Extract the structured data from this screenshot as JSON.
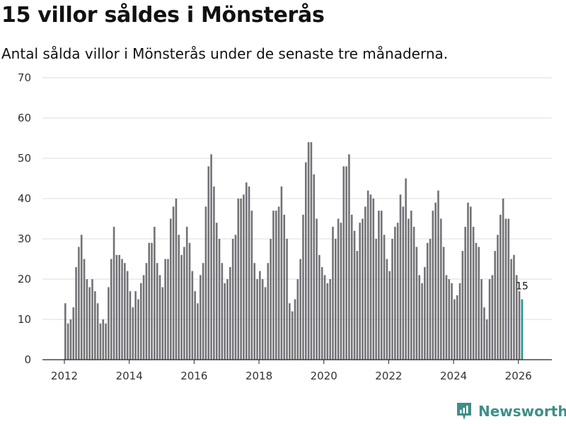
{
  "title": "15 villor såldes i Mönsterås",
  "subtitle": "Antal sålda villor i Mönsterås under de senaste tre månaderna.",
  "brand": {
    "name": "Newsworthy",
    "icon": "newsworthy-logo-icon"
  },
  "colors": {
    "bar": "#737277",
    "highlight": "#22958d",
    "grid": "#dddddd"
  },
  "chart_data": {
    "type": "bar",
    "title": "15 villor såldes i Mönsterås",
    "xlabel": "",
    "ylabel": "",
    "ylim": [
      0,
      70
    ],
    "yticks": [
      0,
      10,
      20,
      30,
      40,
      50,
      60,
      70
    ],
    "xticks": [
      2012,
      2014,
      2016,
      2018,
      2020,
      2022,
      2024,
      2026
    ],
    "start_year": 2012,
    "start_month": 1,
    "frequency": "monthly",
    "values": [
      14,
      9,
      10,
      13,
      23,
      28,
      31,
      25,
      20,
      18,
      20,
      17,
      14,
      9,
      10,
      9,
      18,
      25,
      33,
      26,
      26,
      25,
      24,
      22,
      17,
      13,
      17,
      15,
      19,
      21,
      24,
      29,
      29,
      33,
      24,
      21,
      18,
      25,
      25,
      35,
      38,
      40,
      31,
      26,
      28,
      33,
      29,
      22,
      17,
      14,
      21,
      24,
      38,
      48,
      51,
      43,
      34,
      30,
      24,
      19,
      20,
      23,
      30,
      31,
      40,
      40,
      41,
      44,
      43,
      37,
      24,
      20,
      22,
      20,
      18,
      24,
      30,
      37,
      37,
      38,
      43,
      36,
      30,
      14,
      12,
      15,
      20,
      25,
      36,
      49,
      54,
      54,
      46,
      35,
      26,
      23,
      21,
      19,
      20,
      33,
      30,
      35,
      34,
      48,
      48,
      51,
      36,
      32,
      27,
      34,
      35,
      38,
      42,
      41,
      40,
      30,
      37,
      37,
      31,
      25,
      22,
      30,
      33,
      34,
      41,
      38,
      45,
      35,
      37,
      33,
      28,
      21,
      19,
      23,
      29,
      30,
      37,
      39,
      42,
      35,
      28,
      21,
      20,
      19,
      15,
      16,
      19,
      27,
      33,
      39,
      38,
      33,
      29,
      28,
      20,
      13,
      10,
      20,
      21,
      27,
      31,
      36,
      40,
      35,
      35,
      25,
      26,
      21,
      17,
      15
    ],
    "highlight": {
      "index": 169,
      "value": 15,
      "label": "15"
    }
  }
}
